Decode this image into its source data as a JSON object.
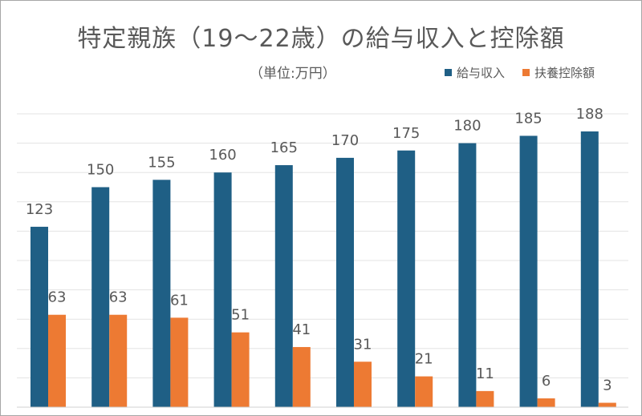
{
  "chart_data": {
    "type": "bar",
    "title": "特定親族（19～22歳）の給与収入と控除額",
    "subtitle": "（単位:万円）",
    "categories": [
      "",
      "",
      "",
      "",
      "",
      "",
      "",
      "",
      "",
      ""
    ],
    "series": [
      {
        "name": "給与収入",
        "color": "#1f5f85",
        "values": [
          123,
          150,
          155,
          160,
          165,
          170,
          175,
          180,
          185,
          188
        ]
      },
      {
        "name": "扶養控除額",
        "color": "#ed7a33",
        "values": [
          63,
          63,
          61,
          51,
          41,
          31,
          21,
          11,
          6,
          3
        ]
      }
    ],
    "ylim": [
      0,
      200
    ],
    "grid": true,
    "legend": "top-right",
    "data_labels": true
  }
}
